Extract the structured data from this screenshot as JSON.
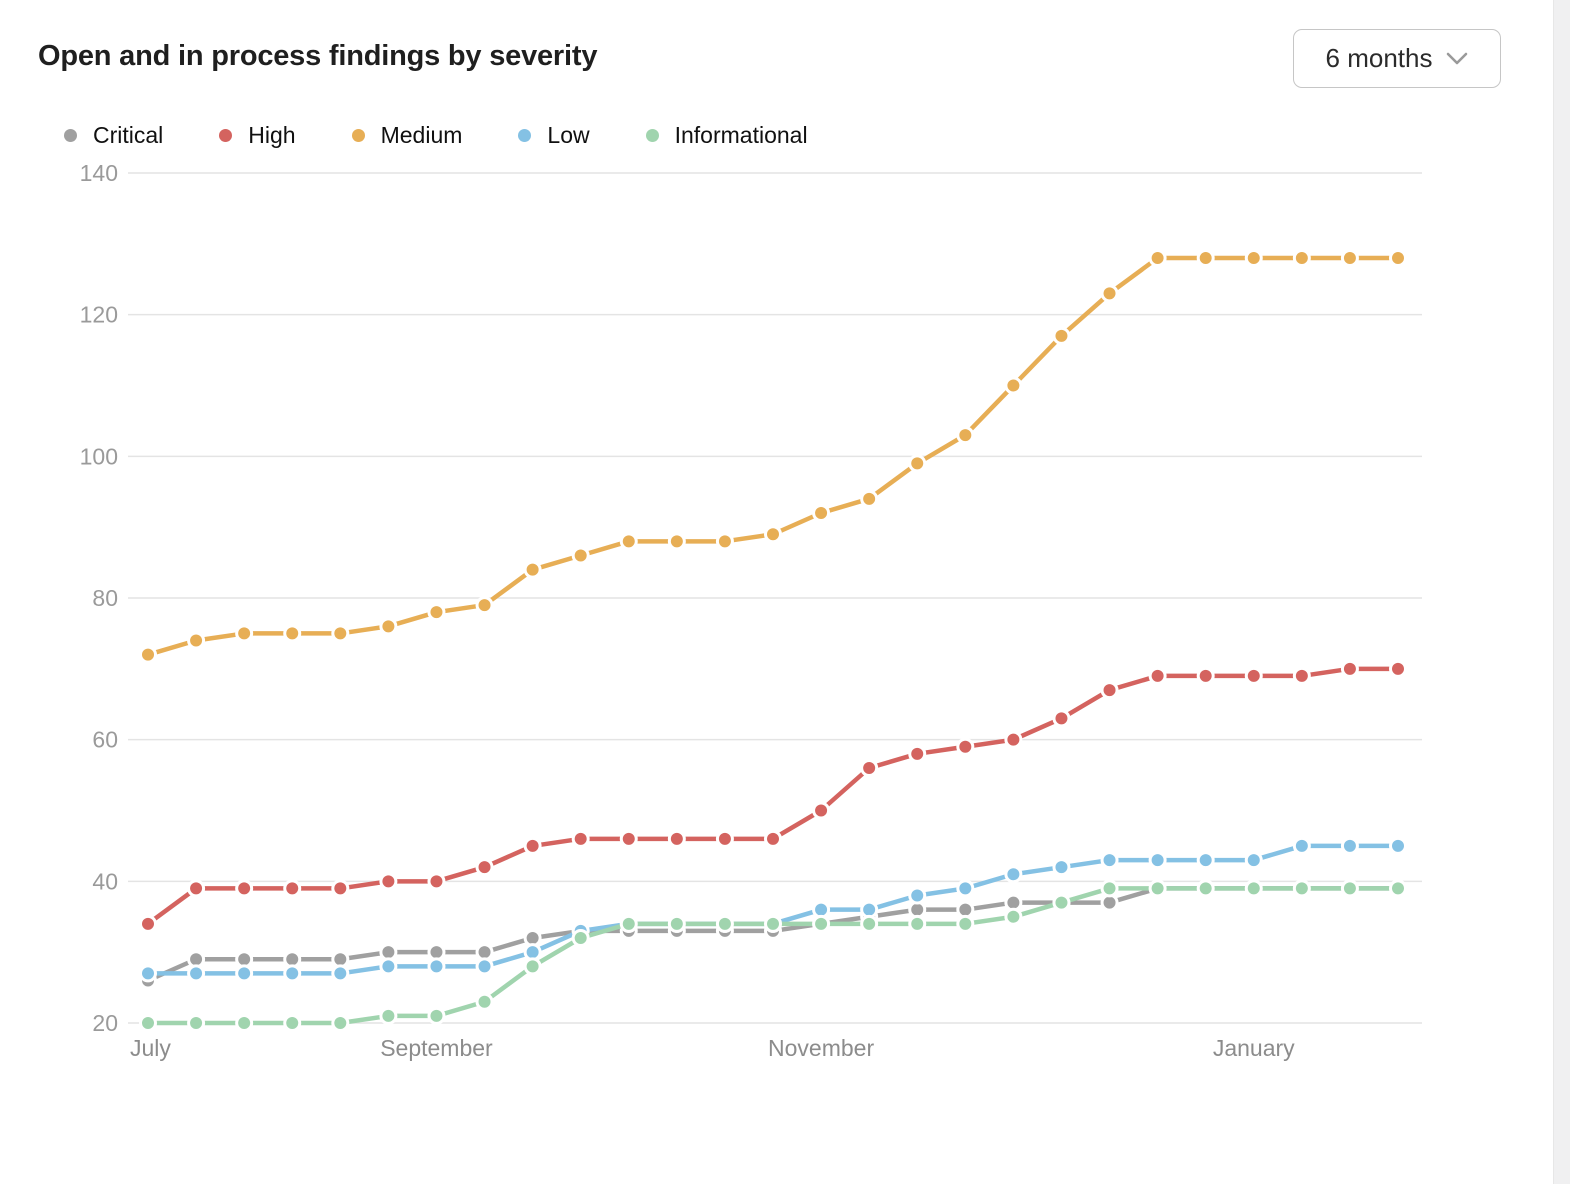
{
  "header": {
    "title": "Open and in process findings by severity",
    "range_selector": {
      "value": "6 months",
      "chevron_icon": "chevron-down",
      "border_color": "#c6c6c6"
    }
  },
  "chart_data": {
    "type": "line",
    "title": "Open and in process findings by severity",
    "n_points": 27,
    "x_labels": [
      "July",
      "September",
      "November",
      "January"
    ],
    "x_label_indices": [
      0,
      6,
      14,
      23
    ],
    "ylim": [
      20,
      140
    ],
    "y_ticks": [
      20,
      40,
      60,
      80,
      100,
      120,
      140
    ],
    "grid": true,
    "legend_position": "top",
    "grid_color": "#e4e4e4",
    "axis_label_color": "#9a9a9a",
    "series": [
      {
        "name": "Critical",
        "color": "#a0a0a0",
        "values": [
          26,
          29,
          29,
          29,
          29,
          30,
          30,
          30,
          32,
          33,
          33,
          33,
          33,
          33,
          34,
          35,
          36,
          36,
          37,
          37,
          37,
          39,
          39,
          39,
          39,
          39,
          39
        ]
      },
      {
        "name": "High",
        "color": "#d4635f",
        "values": [
          34,
          39,
          39,
          39,
          39,
          40,
          40,
          42,
          45,
          46,
          46,
          46,
          46,
          46,
          50,
          56,
          58,
          59,
          60,
          63,
          67,
          69,
          69,
          69,
          69,
          70,
          70
        ]
      },
      {
        "name": "Medium",
        "color": "#e7ae55",
        "values": [
          72,
          74,
          75,
          75,
          75,
          76,
          78,
          79,
          84,
          86,
          88,
          88,
          88,
          89,
          92,
          94,
          99,
          103,
          110,
          117,
          123,
          128,
          128,
          128,
          128,
          128,
          128
        ]
      },
      {
        "name": "Low",
        "color": "#84c1e4",
        "values": [
          27,
          27,
          27,
          27,
          27,
          28,
          28,
          28,
          30,
          33,
          34,
          34,
          34,
          34,
          36,
          36,
          38,
          39,
          41,
          42,
          43,
          43,
          43,
          43,
          45,
          45,
          45
        ]
      },
      {
        "name": "Informational",
        "color": "#a0d4ae",
        "values": [
          20,
          20,
          20,
          20,
          20,
          21,
          21,
          23,
          28,
          32,
          34,
          34,
          34,
          34,
          34,
          34,
          34,
          34,
          35,
          37,
          39,
          39,
          39,
          39,
          39,
          39,
          39
        ]
      }
    ]
  }
}
